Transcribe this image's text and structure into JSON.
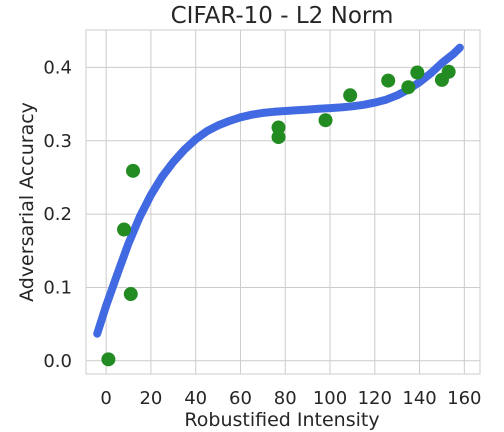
{
  "chart_data": {
    "type": "scatter",
    "title": "CIFAR-10 - L2 Norm",
    "xlabel": "Robustified Intensity",
    "ylabel": "Adversarial Accuracy",
    "xlim": [
      -9,
      167
    ],
    "ylim": [
      -0.018,
      0.451
    ],
    "xticks": [
      0,
      20,
      40,
      60,
      80,
      100,
      120,
      140,
      160
    ],
    "yticks": [
      0.0,
      0.1,
      0.2,
      0.3,
      0.4
    ],
    "grid": true,
    "series": [
      {
        "kind": "scatter",
        "color": "#228b22",
        "points": [
          [
            1,
            0.002
          ],
          [
            8,
            0.179
          ],
          [
            11,
            0.091
          ],
          [
            12,
            0.259
          ],
          [
            77,
            0.318
          ],
          [
            77,
            0.305
          ],
          [
            98,
            0.328
          ],
          [
            109,
            0.362
          ],
          [
            126,
            0.382
          ],
          [
            135,
            0.373
          ],
          [
            139,
            0.393
          ],
          [
            150,
            0.383
          ],
          [
            153,
            0.394
          ]
        ]
      },
      {
        "kind": "line",
        "color": "#4169e1",
        "points": [
          [
            -4,
            0.037
          ],
          [
            0,
            0.075
          ],
          [
            5,
            0.118
          ],
          [
            10,
            0.16
          ],
          [
            15,
            0.196
          ],
          [
            20,
            0.226
          ],
          [
            25,
            0.251
          ],
          [
            30,
            0.271
          ],
          [
            35,
            0.288
          ],
          [
            40,
            0.302
          ],
          [
            45,
            0.313
          ],
          [
            50,
            0.321
          ],
          [
            55,
            0.327
          ],
          [
            60,
            0.332
          ],
          [
            65,
            0.3355
          ],
          [
            70,
            0.338
          ],
          [
            75,
            0.3395
          ],
          [
            80,
            0.3405
          ],
          [
            85,
            0.3415
          ],
          [
            90,
            0.3425
          ],
          [
            95,
            0.3435
          ],
          [
            100,
            0.3445
          ],
          [
            105,
            0.3455
          ],
          [
            110,
            0.347
          ],
          [
            115,
            0.349
          ],
          [
            120,
            0.352
          ],
          [
            125,
            0.356
          ],
          [
            130,
            0.362
          ],
          [
            135,
            0.37
          ],
          [
            140,
            0.38
          ],
          [
            145,
            0.392
          ],
          [
            150,
            0.406
          ],
          [
            155,
            0.418
          ],
          [
            158,
            0.427
          ]
        ]
      }
    ]
  }
}
